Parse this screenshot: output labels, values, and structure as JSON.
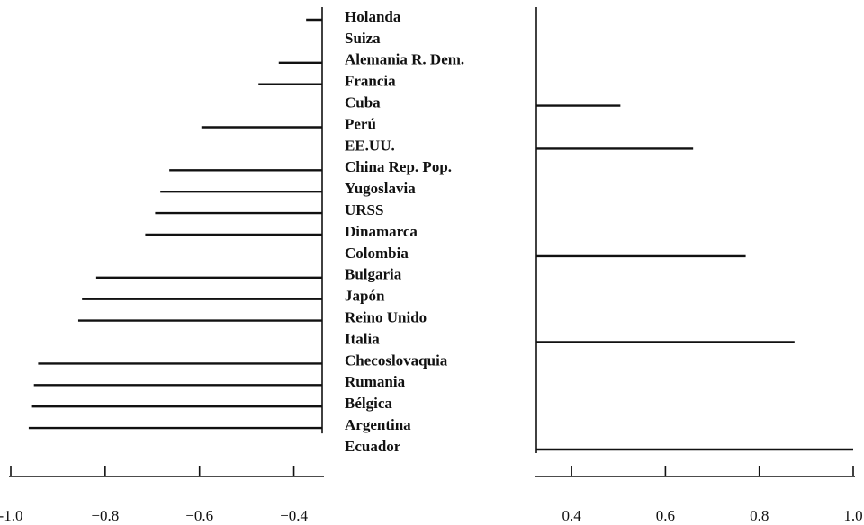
{
  "chart_data": [
    {
      "type": "bar",
      "orientation": "horizontal",
      "categories": [
        "Holanda",
        "Suiza",
        "Alemania R. Dem.",
        "Francia",
        "Cuba",
        "Perú",
        "EE.UU.",
        "China Rep. Pop.",
        "Yugoslavia",
        "URSS",
        "Dinamarca",
        "Colombia",
        "Bulgaria",
        "Japón",
        "Reino Unido",
        "Italia",
        "Checoslovaquia",
        "Rumania",
        "Bélgica",
        "Argentina",
        "Ecuador"
      ],
      "values": [
        -0.374,
        null,
        -0.432,
        -0.475,
        null,
        -0.596,
        null,
        -0.664,
        -0.683,
        -0.694,
        -0.715,
        null,
        -0.819,
        -0.849,
        -0.857,
        null,
        -0.942,
        -0.951,
        -0.955,
        -0.962,
        null
      ],
      "color": "#111111",
      "xlim": [
        -1.0,
        -0.34
      ],
      "xticks": [
        {
          "value": -1.0,
          "label": "-1.0"
        },
        {
          "value": -0.8,
          "label": "−0.8"
        },
        {
          "value": -0.6,
          "label": "−0.6"
        },
        {
          "value": -0.4,
          "label": "−0.4"
        }
      ]
    },
    {
      "type": "bar",
      "orientation": "horizontal",
      "values": [
        null,
        null,
        null,
        null,
        0.504,
        null,
        0.659,
        null,
        null,
        null,
        null,
        0.771,
        null,
        null,
        null,
        0.875,
        null,
        null,
        null,
        null,
        1.0
      ],
      "color": "#111111",
      "xlim": [
        0.325,
        1.0
      ],
      "xticks": [
        0.4,
        0.6,
        0.8,
        {
          "value": 1.0,
          "label": "1.0"
        }
      ]
    }
  ]
}
